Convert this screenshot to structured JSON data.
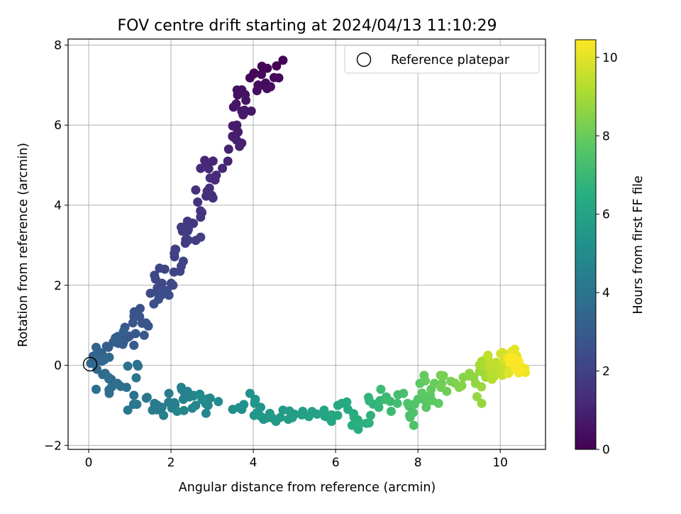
{
  "chart_data": {
    "type": "scatter",
    "title": "FOV centre drift starting at 2024/04/13 11:10:29",
    "xlabel": "Angular distance from reference (arcmin)",
    "ylabel": "Rotation from reference (arcmin)",
    "xlim": [
      -0.5,
      11.1
    ],
    "ylim": [
      -2.1,
      8.15
    ],
    "xticks": [
      "0",
      "2",
      "4",
      "6",
      "8",
      "10"
    ],
    "xtick_values": [
      0,
      2,
      4,
      6,
      8,
      10
    ],
    "yticks": [
      "−2",
      "0",
      "2",
      "4",
      "6",
      "8"
    ],
    "ytick_values": [
      -2,
      0,
      2,
      4,
      6,
      8
    ],
    "grid": true,
    "legend": {
      "placement": "top-right",
      "entries": [
        "Reference platepar"
      ]
    },
    "reference_point": {
      "x": 0,
      "y": 0
    },
    "colorbar": {
      "label": "Hours from first FF file",
      "colormap": "viridis",
      "range": [
        0,
        10.45
      ],
      "ticks": [
        "0",
        "2",
        "4",
        "6",
        "8",
        "10"
      ],
      "tick_values": [
        0,
        2,
        4,
        6,
        8,
        10
      ]
    },
    "anchor_points": [
      [
        4.72,
        7.62,
        0.0
      ],
      [
        4.34,
        7.42,
        0.1
      ],
      [
        4.02,
        7.3,
        0.15
      ],
      [
        3.92,
        7.18,
        0.2
      ],
      [
        4.62,
        7.18,
        0.25
      ],
      [
        4.3,
        7.05,
        0.3
      ],
      [
        4.12,
        7.0,
        0.35
      ],
      [
        4.42,
        6.96,
        0.4
      ],
      [
        3.72,
        6.88,
        0.45
      ],
      [
        3.62,
        6.75,
        0.5
      ],
      [
        3.82,
        6.62,
        0.55
      ],
      [
        3.52,
        6.45,
        0.6
      ],
      [
        3.95,
        6.35,
        0.65
      ],
      [
        3.72,
        6.35,
        0.7
      ],
      [
        3.6,
        6.0,
        0.75
      ],
      [
        3.5,
        5.98,
        0.8
      ],
      [
        3.62,
        5.82,
        0.85
      ],
      [
        3.52,
        5.7,
        0.9
      ],
      [
        3.72,
        5.55,
        0.95
      ],
      [
        3.4,
        5.4,
        1.0
      ],
      [
        3.25,
        4.92,
        1.1
      ],
      [
        2.82,
        5.12,
        1.15
      ],
      [
        2.72,
        4.92,
        1.2
      ],
      [
        3.1,
        4.75,
        1.25
      ],
      [
        2.95,
        4.68,
        1.3
      ],
      [
        2.88,
        4.35,
        1.35
      ],
      [
        3.02,
        4.18,
        1.4
      ],
      [
        2.6,
        4.38,
        1.45
      ],
      [
        2.75,
        3.82,
        1.55
      ],
      [
        2.72,
        3.7,
        1.6
      ],
      [
        2.4,
        3.6,
        1.65
      ],
      [
        2.52,
        3.55,
        1.7
      ],
      [
        2.25,
        3.45,
        1.75
      ],
      [
        2.4,
        3.35,
        1.8
      ],
      [
        2.35,
        3.05,
        1.85
      ],
      [
        2.72,
        3.2,
        1.9
      ],
      [
        2.1,
        2.9,
        1.95
      ],
      [
        2.08,
        2.8,
        2.0
      ],
      [
        2.3,
        2.6,
        2.05
      ],
      [
        2.22,
        2.35,
        2.1
      ],
      [
        1.85,
        2.4,
        2.15
      ],
      [
        1.6,
        2.25,
        2.2
      ],
      [
        1.78,
        2.05,
        2.25
      ],
      [
        2.05,
        2.0,
        2.3
      ],
      [
        1.5,
        1.8,
        2.35
      ],
      [
        1.72,
        1.9,
        2.4
      ],
      [
        1.95,
        1.75,
        2.45
      ],
      [
        1.7,
        1.65,
        2.5
      ],
      [
        1.25,
        1.42,
        2.6
      ],
      [
        1.1,
        1.22,
        2.65
      ],
      [
        1.3,
        1.05,
        2.7
      ],
      [
        1.45,
        0.98,
        2.75
      ],
      [
        0.88,
        0.95,
        2.8
      ],
      [
        0.95,
        0.7,
        2.85
      ],
      [
        1.35,
        0.75,
        2.9
      ],
      [
        0.72,
        0.55,
        2.95
      ],
      [
        1.1,
        0.5,
        3.0
      ],
      [
        0.6,
        0.58,
        3.05
      ],
      [
        0.48,
        0.45,
        3.1
      ],
      [
        0.85,
        0.85,
        3.15
      ],
      [
        0.32,
        0.3,
        3.25
      ],
      [
        0.12,
        0.22,
        3.3
      ],
      [
        0.18,
        0.45,
        3.35
      ],
      [
        0.32,
        0.1,
        3.4
      ],
      [
        0.05,
        0.05,
        3.45
      ],
      [
        0.5,
        0.2,
        3.5
      ],
      [
        0.2,
        -0.1,
        3.55
      ],
      [
        0.4,
        -0.2,
        3.6
      ],
      [
        0.55,
        -0.35,
        3.65
      ],
      [
        0.5,
        -0.7,
        3.7
      ],
      [
        0.7,
        -0.45,
        3.75
      ],
      [
        0.92,
        -0.55,
        3.8
      ],
      [
        0.18,
        -0.6,
        3.85
      ],
      [
        0.95,
        -0.02,
        3.9
      ],
      [
        1.2,
        -0.02,
        3.95
      ],
      [
        1.1,
        -0.75,
        4.0
      ],
      [
        0.95,
        -1.12,
        4.1
      ],
      [
        1.4,
        -0.82,
        4.15
      ],
      [
        1.6,
        -0.95,
        4.2
      ],
      [
        1.78,
        -1.05,
        4.25
      ],
      [
        1.55,
        -1.12,
        4.3
      ],
      [
        1.95,
        -0.7,
        4.35
      ],
      [
        2.1,
        -0.98,
        4.4
      ],
      [
        1.82,
        -1.25,
        4.45
      ],
      [
        2.25,
        -0.55,
        4.5
      ],
      [
        2.4,
        -0.65,
        4.55
      ],
      [
        2.3,
        -0.85,
        4.6
      ],
      [
        2.55,
        -0.75,
        4.65
      ],
      [
        2.6,
        -1.0,
        4.7
      ],
      [
        2.15,
        -1.15,
        4.75
      ],
      [
        2.85,
        -1.2,
        4.8
      ],
      [
        2.95,
        -0.82,
        4.85
      ],
      [
        2.9,
        -1.0,
        4.9
      ],
      [
        2.7,
        -0.72,
        4.95
      ],
      [
        3.5,
        -1.1,
        5.1
      ],
      [
        3.72,
        -1.1,
        5.2
      ],
      [
        3.92,
        -0.7,
        5.3
      ],
      [
        4.05,
        -0.85,
        5.35
      ],
      [
        4.18,
        -1.05,
        5.4
      ],
      [
        4.02,
        -1.25,
        5.45
      ],
      [
        4.25,
        -1.35,
        5.5
      ],
      [
        4.4,
        -1.2,
        5.55
      ],
      [
        4.55,
        -1.4,
        5.6
      ],
      [
        4.72,
        -1.12,
        5.65
      ],
      [
        4.85,
        -1.35,
        5.7
      ],
      [
        5.0,
        -1.22,
        5.8
      ],
      [
        5.2,
        -1.15,
        5.85
      ],
      [
        5.35,
        -1.28,
        5.9
      ],
      [
        5.55,
        -1.22,
        6.0
      ],
      [
        5.72,
        -1.12,
        6.1
      ],
      [
        5.9,
        -1.4,
        6.15
      ],
      [
        6.05,
        -1.25,
        6.2
      ],
      [
        6.15,
        -0.95,
        6.3
      ],
      [
        6.3,
        -1.1,
        6.35
      ],
      [
        6.45,
        -1.3,
        6.45
      ],
      [
        6.55,
        -1.6,
        6.5
      ],
      [
        6.4,
        -1.5,
        6.55
      ],
      [
        6.75,
        -1.45,
        6.6
      ],
      [
        6.85,
        -1.25,
        6.7
      ],
      [
        6.8,
        -0.8,
        6.75
      ],
      [
        7.05,
        -1.05,
        6.85
      ],
      [
        7.2,
        -0.85,
        6.95
      ],
      [
        7.35,
        -1.15,
        7.05
      ],
      [
        7.1,
        -0.6,
        7.1
      ],
      [
        7.5,
        -0.95,
        7.2
      ],
      [
        7.65,
        -0.7,
        7.3
      ],
      [
        7.8,
        -1.25,
        7.35
      ],
      [
        7.9,
        -1.5,
        7.45
      ],
      [
        7.75,
        -0.95,
        7.5
      ],
      [
        8.0,
        -0.85,
        7.6
      ],
      [
        8.2,
        -1.05,
        7.7
      ],
      [
        8.05,
        -0.45,
        7.75
      ],
      [
        8.3,
        -0.75,
        7.8
      ],
      [
        8.5,
        -0.95,
        7.85
      ],
      [
        8.15,
        -0.25,
        7.9
      ],
      [
        8.4,
        -0.45,
        8.0
      ],
      [
        8.7,
        -0.65,
        8.1
      ],
      [
        8.55,
        -0.25,
        8.2
      ],
      [
        8.8,
        -0.4,
        8.3
      ],
      [
        9.0,
        -0.55,
        8.4
      ],
      [
        9.1,
        -0.3,
        8.5
      ],
      [
        9.25,
        -0.2,
        8.6
      ],
      [
        9.4,
        -0.45,
        8.7
      ],
      [
        9.55,
        -0.95,
        8.75
      ],
      [
        9.5,
        -0.15,
        8.85
      ],
      [
        9.65,
        -0.3,
        8.95
      ],
      [
        9.55,
        0.1,
        9.05
      ],
      [
        9.7,
        0.05,
        9.15
      ],
      [
        9.8,
        -0.35,
        9.25
      ],
      [
        9.95,
        -0.1,
        9.35
      ],
      [
        9.7,
        0.25,
        9.45
      ],
      [
        10.05,
        -0.25,
        9.55
      ],
      [
        10.15,
        0.15,
        9.65
      ],
      [
        10.05,
        0.32,
        9.75
      ],
      [
        10.3,
        0.05,
        9.85
      ],
      [
        10.2,
        -0.2,
        9.95
      ],
      [
        10.35,
        0.4,
        10.05
      ],
      [
        10.5,
        -0.1,
        10.15
      ],
      [
        10.6,
        -0.08,
        10.25
      ],
      [
        10.4,
        -0.05,
        10.35
      ],
      [
        10.25,
        0.2,
        10.4
      ],
      [
        10.45,
        0.1,
        10.45
      ]
    ]
  }
}
